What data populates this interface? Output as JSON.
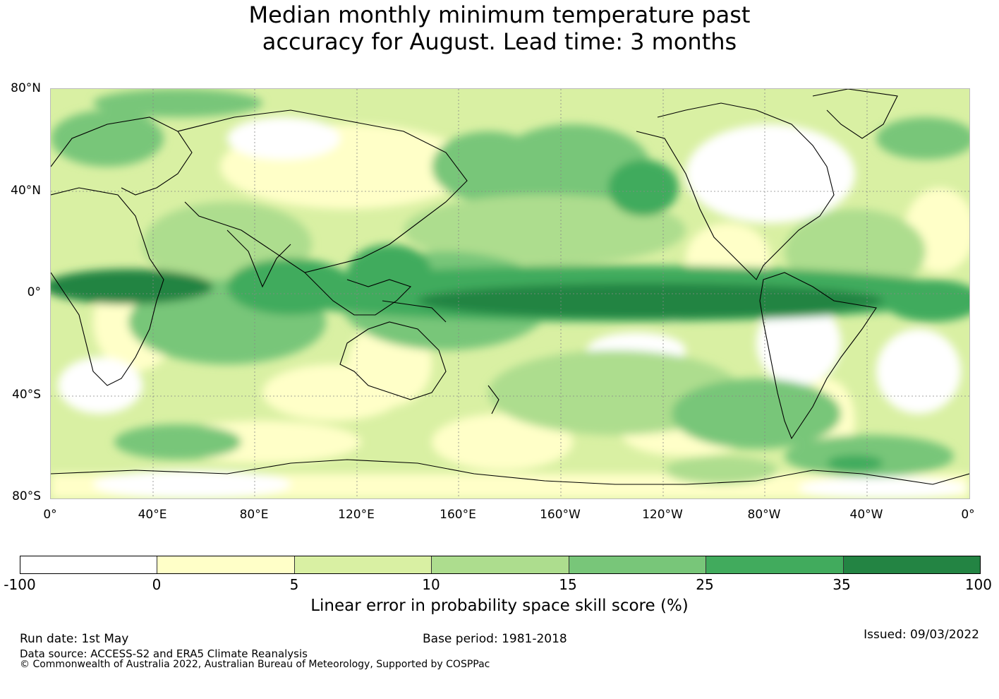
{
  "title": {
    "line1": "Median monthly minimum temperature past",
    "line2": "accuracy for August. Lead time: 3 months"
  },
  "map": {
    "lat_labels": [
      "80°N",
      "40°N",
      "0°",
      "40°S",
      "80°S"
    ],
    "lon_labels": [
      "0°",
      "40°E",
      "80°E",
      "120°E",
      "160°E",
      "160°W",
      "120°W",
      "80°W",
      "40°W",
      "0°"
    ],
    "background_color": "#ffffc8",
    "land_outline_color": "#000000"
  },
  "colorbar": {
    "tick_labels": [
      "-100",
      "0",
      "5",
      "10",
      "15",
      "25",
      "35",
      "100"
    ],
    "colors": [
      "#ffffff",
      "#ffffc8",
      "#d9f0a3",
      "#addd8e",
      "#78c679",
      "#41ab5d",
      "#238443"
    ],
    "title": "Linear error in probability space skill score (%)"
  },
  "footer": {
    "run_date": "Run date: 1st May",
    "base_period": "Base period: 1981-2018",
    "issued": "Issued: 09/03/2022",
    "data_source": "Data source: ACCESS-S2 and ERA5 Climate Reanalysis",
    "copyright": "© Commonwealth of Australia 2022, Australian Bureau of Meteorology, Supported by COSPPac"
  }
}
